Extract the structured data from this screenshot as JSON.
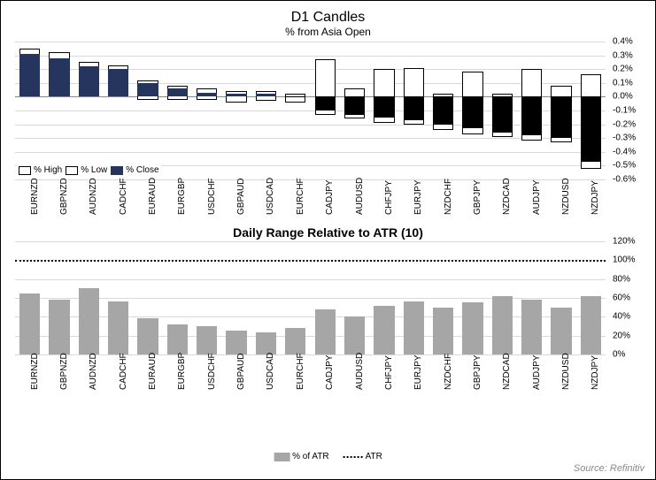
{
  "top_chart": {
    "title": "D1 Candles",
    "subtitle": "% from Asia Open",
    "type": "candlestick-range",
    "background_color": "#ffffff",
    "grid_color": "#d9d9d9",
    "label_fontsize": 10,
    "title_fontsize": 16,
    "subtitle_fontsize": 12,
    "ylim": [
      -0.6,
      0.4
    ],
    "ytick_step": 0.1,
    "ytick_format": "percent1dp",
    "legend_items": [
      "% High",
      "% Low",
      "% Close"
    ],
    "legend_position": "bottom-left",
    "wick_fill": "#ffffff",
    "wick_border": "#000000",
    "body_color_up": "#26355d",
    "body_color_down": "#000000",
    "categories": [
      "EURNZD",
      "GBPNZD",
      "AUDNZD",
      "CADCHF",
      "EURAUD",
      "EURGBP",
      "USDCHF",
      "GBPAUD",
      "USDCAD",
      "EURCHF",
      "CADJPY",
      "AUDUSD",
      "CHFJPY",
      "EURJPY",
      "NZDCHF",
      "GBPJPY",
      "NZDCAD",
      "AUDJPY",
      "NZDUSD",
      "NZDJPY"
    ],
    "data": [
      {
        "high": 0.35,
        "low": 0.02,
        "close": 0.31
      },
      {
        "high": 0.32,
        "low": 0.02,
        "close": 0.28
      },
      {
        "high": 0.25,
        "low": 0.0,
        "close": 0.22
      },
      {
        "high": 0.23,
        "low": 0.01,
        "close": 0.2
      },
      {
        "high": 0.12,
        "low": -0.02,
        "close": 0.1
      },
      {
        "high": 0.08,
        "low": -0.02,
        "close": 0.06
      },
      {
        "high": 0.06,
        "low": -0.02,
        "close": 0.03
      },
      {
        "high": 0.04,
        "low": -0.04,
        "close": 0.02
      },
      {
        "high": 0.04,
        "low": -0.03,
        "close": 0.02
      },
      {
        "high": 0.02,
        "low": -0.04,
        "close": -0.005
      },
      {
        "high": 0.27,
        "low": -0.13,
        "close": -0.1
      },
      {
        "high": 0.06,
        "low": -0.16,
        "close": -0.13
      },
      {
        "high": 0.2,
        "low": -0.19,
        "close": -0.15
      },
      {
        "high": 0.21,
        "low": -0.2,
        "close": -0.17
      },
      {
        "high": 0.02,
        "low": -0.24,
        "close": -0.2
      },
      {
        "high": 0.18,
        "low": -0.27,
        "close": -0.23
      },
      {
        "high": 0.02,
        "low": -0.29,
        "close": -0.26
      },
      {
        "high": 0.2,
        "low": -0.32,
        "close": -0.28
      },
      {
        "high": 0.08,
        "low": -0.33,
        "close": -0.3
      },
      {
        "high": 0.16,
        "low": -0.52,
        "close": -0.47
      }
    ]
  },
  "bottom_chart": {
    "title": "Daily Range Relative to ATR (10)",
    "type": "bar",
    "background_color": "#ffffff",
    "grid_color": "#d9d9d9",
    "label_fontsize": 10,
    "title_fontsize": 14,
    "ylim": [
      0,
      120
    ],
    "ytick_step": 20,
    "ytick_format": "percent0dp",
    "atr_line_value": 100,
    "atr_line_style": "dotted",
    "atr_line_color": "#000000",
    "bar_color": "#a6a6a6",
    "legend_items": [
      "% of ATR",
      "ATR"
    ],
    "categories": [
      "EURNZD",
      "GBPNZD",
      "AUDNZD",
      "CADCHF",
      "EURAUD",
      "EURGBP",
      "USDCHF",
      "GBPAUD",
      "USDCAD",
      "EURCHF",
      "CADJPY",
      "AUDUSD",
      "CHFJPY",
      "EURJPY",
      "NZDCHF",
      "GBPJPY",
      "NZDCAD",
      "AUDJPY",
      "NZDUSD",
      "NZDJPY"
    ],
    "values": [
      65,
      58,
      70,
      56,
      38,
      32,
      30,
      25,
      23,
      28,
      48,
      40,
      52,
      56,
      50,
      55,
      62,
      58,
      50,
      62
    ]
  },
  "source_label": "Source: Refinitiv"
}
